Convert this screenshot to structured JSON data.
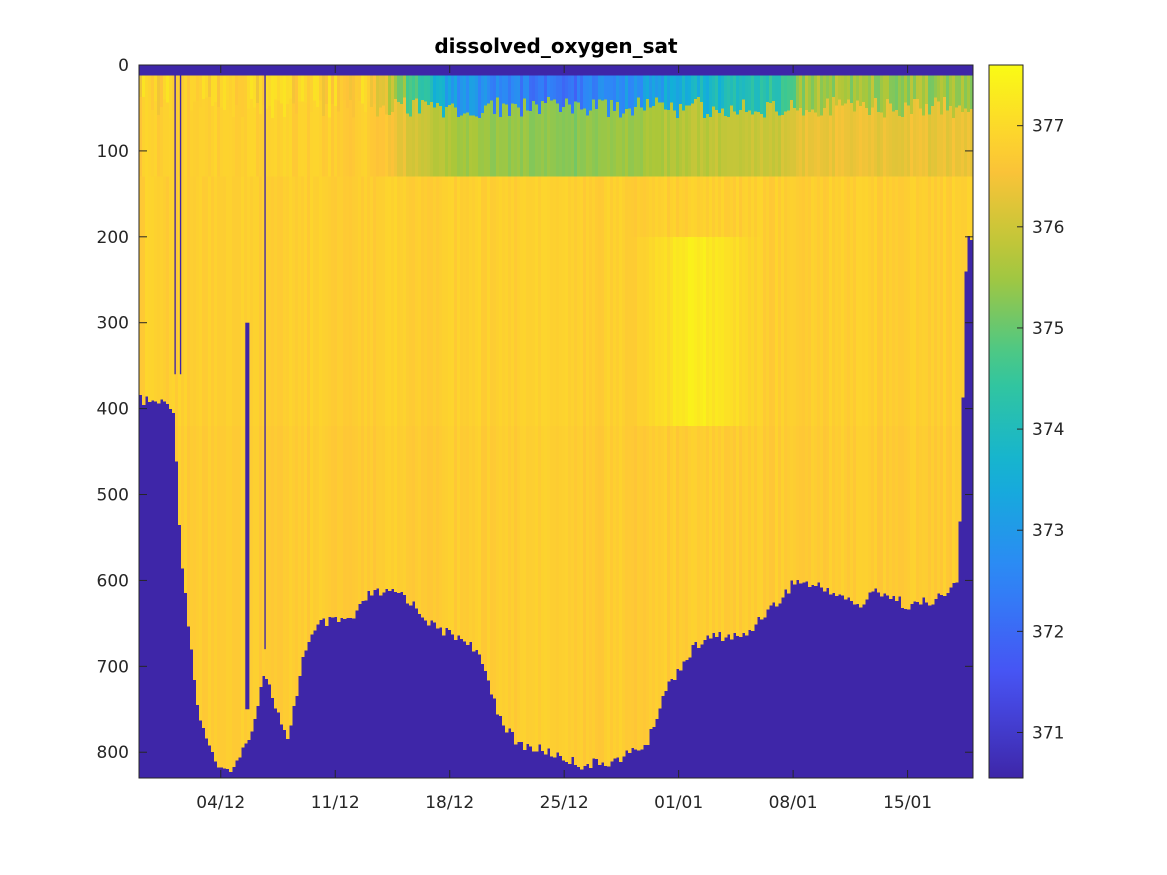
{
  "chart_data": {
    "type": "heatmap",
    "title": "dissolved_oxygen_sat",
    "xlabel": "",
    "ylabel": "",
    "x_axis": {
      "type": "date",
      "range": [
        "2019-11-29T00:00",
        "2020-01-19T00:00"
      ],
      "ticks": [
        {
          "value": "2019-12-04",
          "label": "04/12"
        },
        {
          "value": "2019-12-11",
          "label": "11/12"
        },
        {
          "value": "2019-12-18",
          "label": "18/12"
        },
        {
          "value": "2019-12-25",
          "label": "25/12"
        },
        {
          "value": "2020-01-01",
          "label": "01/01"
        },
        {
          "value": "2020-01-08",
          "label": "08/01"
        },
        {
          "value": "2020-01-15",
          "label": "15/01"
        }
      ]
    },
    "y_axis": {
      "reversed": true,
      "range": [
        0,
        830
      ],
      "ticks": [
        0,
        100,
        200,
        300,
        400,
        500,
        600,
        700,
        800
      ]
    },
    "colorbar": {
      "colormap": "parula",
      "range": [
        370.55,
        377.6
      ],
      "ticks": [
        371,
        372,
        373,
        374,
        375,
        376,
        377
      ],
      "no_data_value": 370.55
    },
    "field": {
      "surface_gap_depth": 12,
      "bulk_value": 376.8,
      "max_value_region": {
        "date": "2020-01-02",
        "depth_range": [
          200,
          420
        ],
        "value": 377.5
      },
      "surface_min_values": [
        {
          "date": "2019-12-18",
          "value": 373
        },
        {
          "date": "2019-12-25",
          "value": 372
        },
        {
          "date": "2020-01-01",
          "value": 373.5
        },
        {
          "date": "2020-01-08",
          "value": 374.5
        }
      ],
      "bottom_depth_profile": [
        {
          "date": "2019-11-29",
          "depth": 390
        },
        {
          "date": "2019-12-01",
          "depth": 395
        },
        {
          "date": "2019-12-01T12:00",
          "depth": 570
        },
        {
          "date": "2019-12-02",
          "depth": 660
        },
        {
          "date": "2019-12-02T12:00",
          "depth": 750
        },
        {
          "date": "2019-12-03T12:00",
          "depth": 810
        },
        {
          "date": "2019-12-04",
          "depth": 825
        },
        {
          "date": "2019-12-05",
          "depth": 810
        },
        {
          "date": "2019-12-06",
          "depth": 760
        },
        {
          "date": "2019-12-06T12:00",
          "depth": 705
        },
        {
          "date": "2019-12-07",
          "depth": 730
        },
        {
          "date": "2019-12-08",
          "depth": 790
        },
        {
          "date": "2019-12-09",
          "depth": 680
        },
        {
          "date": "2019-12-10",
          "depth": 650
        },
        {
          "date": "2019-12-12",
          "depth": 645
        },
        {
          "date": "2019-12-13",
          "depth": 615
        },
        {
          "date": "2019-12-15",
          "depth": 615
        },
        {
          "date": "2019-12-17",
          "depth": 655
        },
        {
          "date": "2019-12-19",
          "depth": 670
        },
        {
          "date": "2019-12-20",
          "depth": 700
        },
        {
          "date": "2019-12-21",
          "depth": 760
        },
        {
          "date": "2019-12-22",
          "depth": 790
        },
        {
          "date": "2019-12-24",
          "depth": 800
        },
        {
          "date": "2019-12-26",
          "depth": 815
        },
        {
          "date": "2019-12-28",
          "depth": 810
        },
        {
          "date": "2019-12-30",
          "depth": 790
        },
        {
          "date": "2019-12-31",
          "depth": 730
        },
        {
          "date": "2020-01-01",
          "depth": 700
        },
        {
          "date": "2020-01-02",
          "depth": 675
        },
        {
          "date": "2020-01-03",
          "depth": 665
        },
        {
          "date": "2020-01-05",
          "depth": 665
        },
        {
          "date": "2020-01-06",
          "depth": 640
        },
        {
          "date": "2020-01-07",
          "depth": 625
        },
        {
          "date": "2020-01-08",
          "depth": 600
        },
        {
          "date": "2020-01-10",
          "depth": 610
        },
        {
          "date": "2020-01-12",
          "depth": 630
        },
        {
          "date": "2020-01-13",
          "depth": 610
        },
        {
          "date": "2020-01-15",
          "depth": 630
        },
        {
          "date": "2020-01-17",
          "depth": 620
        },
        {
          "date": "2020-01-18",
          "depth": 600
        },
        {
          "date": "2020-01-18T12:00",
          "depth": 200
        },
        {
          "date": "2020-01-19",
          "depth": 200
        }
      ],
      "data_gaps": [
        {
          "date_range": [
            "2019-12-01T04:00",
            "2019-12-01T06:00"
          ],
          "depth_range": [
            12,
            360
          ]
        },
        {
          "date_range": [
            "2019-12-01T12:00",
            "2019-12-01T14:00"
          ],
          "depth_range": [
            12,
            360
          ]
        },
        {
          "date_range": [
            "2019-12-05T12:00",
            "2019-12-05T18:00"
          ],
          "depth_range": [
            300,
            750
          ]
        },
        {
          "date_range": [
            "2019-12-06T16:00",
            "2019-12-06T18:00"
          ],
          "depth_range": [
            12,
            680
          ]
        }
      ]
    }
  }
}
